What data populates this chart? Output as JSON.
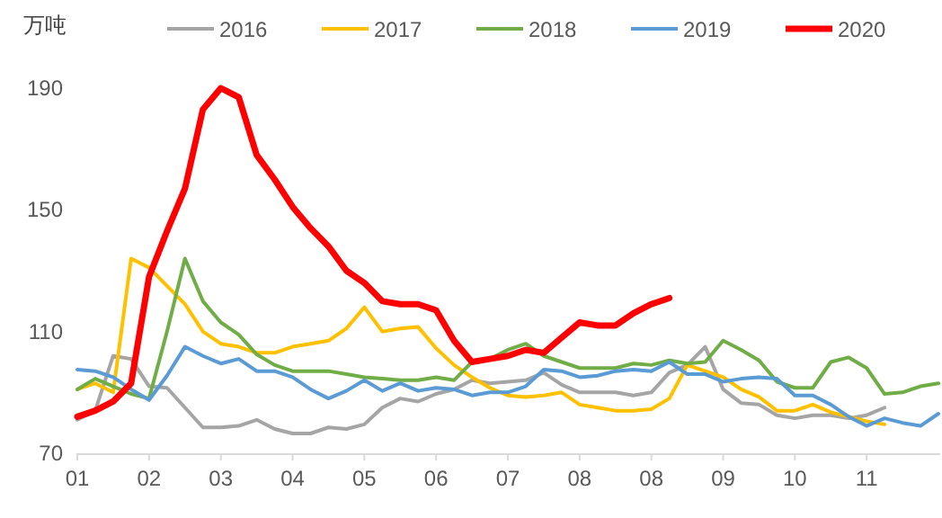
{
  "chart_data": {
    "type": "line",
    "ylabel": "万吨",
    "categories": [
      "01",
      null,
      null,
      null,
      "02",
      null,
      null,
      null,
      "03",
      null,
      null,
      null,
      "04",
      null,
      null,
      null,
      "05",
      null,
      null,
      null,
      "06",
      null,
      null,
      null,
      "07",
      null,
      null,
      null,
      "08",
      null,
      null,
      null,
      "08",
      null,
      null,
      null,
      "09",
      null,
      null,
      null,
      "10",
      null,
      null,
      null,
      "11",
      null,
      null,
      null,
      null
    ],
    "ylim": [
      70,
      190
    ],
    "yticks": [
      70,
      110,
      150,
      190
    ],
    "grid": false,
    "legend": "top",
    "marker": "none",
    "line_style": "solid",
    "series": [
      {
        "name": "2016",
        "color": "#a5a5a5",
        "values": [
          81,
          84,
          102,
          101,
          92,
          91.5,
          85,
          78.5,
          78.5,
          79,
          81,
          78,
          76.5,
          76.5,
          78.5,
          78,
          79.5,
          85,
          88,
          87,
          89.5,
          91,
          94,
          93,
          93.5,
          94,
          96.5,
          92.5,
          90,
          90,
          90,
          89,
          90,
          96.5,
          99,
          105,
          91,
          86.5,
          86,
          82.5,
          81.5,
          82.5,
          82.5,
          81.5,
          82.5,
          85,
          null,
          null,
          null
        ]
      },
      {
        "name": "2017",
        "color": "#ffc000",
        "values": [
          91,
          93,
          90,
          134,
          131,
          125,
          119,
          110,
          106,
          105,
          103,
          103,
          105,
          106,
          107,
          111,
          118,
          110,
          111,
          111.5,
          104.5,
          99,
          95,
          91.5,
          89,
          88.5,
          89,
          90,
          86,
          85,
          84,
          84,
          84.5,
          88,
          99,
          97,
          95,
          91,
          88.5,
          84,
          84,
          86,
          83.5,
          82,
          80.5,
          79.5,
          null,
          null,
          null
        ]
      },
      {
        "name": "2018",
        "color": "#70ad47",
        "values": [
          91,
          94.5,
          92,
          89.5,
          88,
          110,
          134,
          120,
          113,
          109,
          102.5,
          99,
          97,
          97,
          97,
          96,
          95,
          94.5,
          94,
          94,
          95,
          94,
          100,
          101,
          104,
          106,
          102,
          100,
          98,
          98,
          98,
          99.5,
          99,
          100.5,
          99.5,
          100,
          107,
          104,
          100.5,
          93.5,
          91.5,
          91.5,
          100,
          101.5,
          98,
          89.5,
          90,
          92,
          93
        ]
      },
      {
        "name": "2019",
        "color": "#5b9bd5",
        "values": [
          97.5,
          97,
          95,
          91,
          87.5,
          95.5,
          105,
          102,
          99.5,
          101,
          97,
          97,
          95,
          91,
          88,
          90.5,
          94,
          90.5,
          93,
          90.5,
          91.5,
          91,
          89,
          90,
          90,
          92,
          97.5,
          97,
          95,
          95.5,
          97,
          97.5,
          97,
          100,
          96,
          96,
          93.5,
          94.5,
          95,
          94.5,
          89,
          89,
          86,
          82,
          79,
          81.5,
          80,
          79,
          83
        ]
      },
      {
        "name": "2020",
        "color": "#ff0000",
        "values": [
          82,
          84,
          87,
          93,
          128,
          143,
          157,
          183,
          190,
          187,
          168,
          160,
          151,
          144,
          138,
          130,
          126,
          120,
          119,
          119,
          117,
          107,
          100,
          101,
          102,
          104,
          103,
          108,
          113,
          112,
          112,
          116,
          119,
          121,
          null,
          null,
          null,
          null,
          null,
          null,
          null,
          null,
          null,
          null,
          null,
          null,
          null,
          null,
          null
        ]
      }
    ]
  }
}
